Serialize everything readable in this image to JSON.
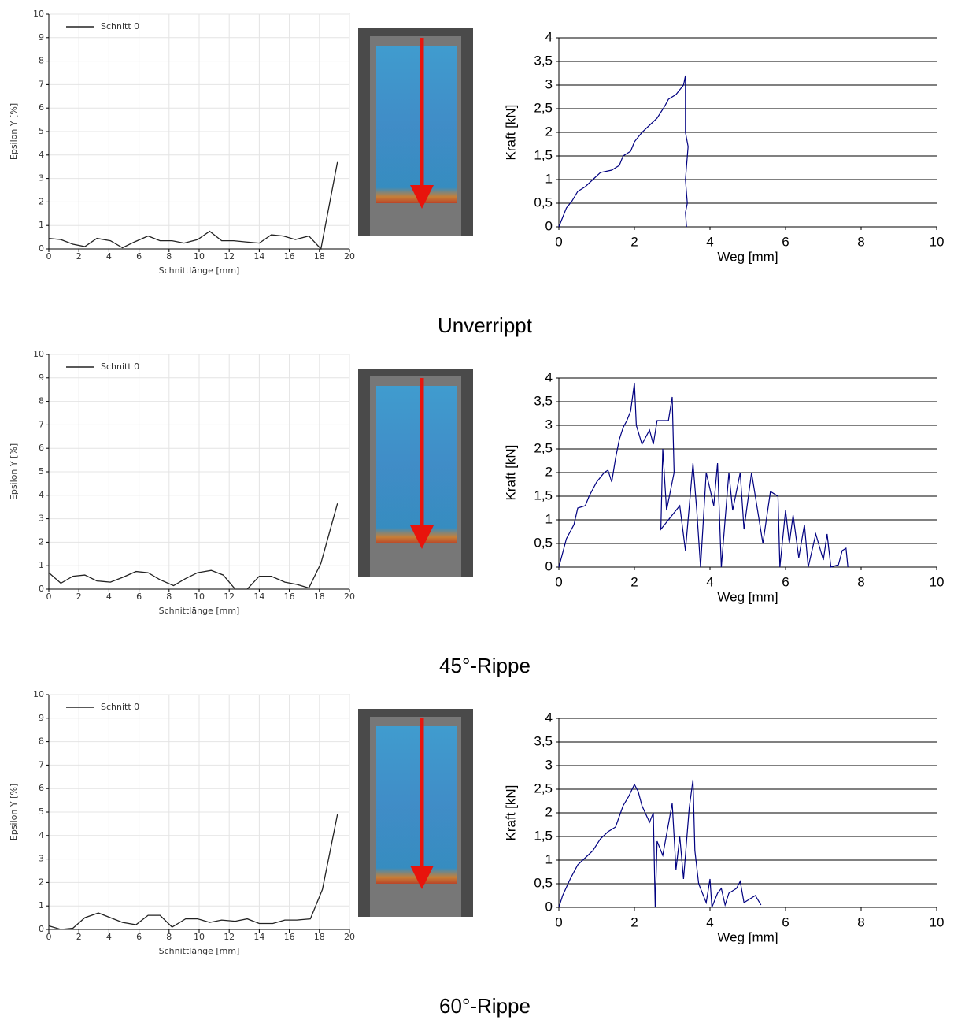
{
  "chart_data": [
    {
      "type": "line",
      "xlabel": "Schnittlänge [mm]",
      "ylabel": "Epsilon Y [%]",
      "grid": "both",
      "legend": "top-left",
      "xlim": [
        0,
        20
      ],
      "xticks": [
        0,
        2,
        4,
        6,
        8,
        10,
        12,
        14,
        16,
        18,
        20
      ],
      "ylim": [
        0,
        10
      ],
      "yticks": [
        0,
        1,
        2,
        3,
        4,
        5,
        6,
        7,
        8,
        9,
        10
      ],
      "x": [
        0,
        0.8,
        1.6,
        2.4,
        3.2,
        4.1,
        4.9,
        5.7,
        6.6,
        7.4,
        8.2,
        9,
        9.9,
        10.7,
        11.5,
        12.3,
        13.1,
        14,
        14.8,
        15.6,
        16.4,
        17.3,
        18.1,
        19.2
      ],
      "series": [
        {
          "name": "Schnitt 0",
          "color": "#222222",
          "values": [
            0.45,
            0.4,
            0.2,
            0.1,
            0.45,
            0.35,
            0.05,
            0.3,
            0.55,
            0.35,
            0.35,
            0.25,
            0.4,
            0.75,
            0.35,
            0.35,
            0.3,
            0.25,
            0.6,
            0.55,
            0.4,
            0.55,
            0.0,
            3.7
          ]
        }
      ]
    },
    {
      "type": "line",
      "xlabel": "Weg [mm]",
      "ylabel": "Kraft [kN]",
      "grid": "y",
      "color": "#000080",
      "xlim": [
        0,
        10
      ],
      "xticks": [
        0,
        2,
        4,
        6,
        8,
        10
      ],
      "ylim": [
        0,
        4
      ],
      "yticks": [
        0,
        {
          "value": 0.5,
          "label": "0,5"
        },
        1,
        {
          "value": 1.5,
          "label": "1,5"
        },
        2,
        {
          "value": 2.5,
          "label": "2,5"
        },
        3,
        {
          "value": 3.5,
          "label": "3,5"
        },
        4
      ],
      "x": [
        0,
        0.1,
        0.2,
        0.35,
        0.5,
        0.7,
        0.9,
        1.1,
        1.4,
        1.6,
        1.7,
        1.9,
        2.0,
        2.2,
        2.4,
        2.6,
        2.8,
        2.9,
        3.1,
        3.3,
        3.35,
        3.35,
        3.42,
        3.35,
        3.4,
        3.35,
        3.38
      ],
      "values": [
        0,
        0.2,
        0.4,
        0.55,
        0.75,
        0.85,
        1.0,
        1.15,
        1.2,
        1.3,
        1.5,
        1.6,
        1.8,
        2.0,
        2.15,
        2.3,
        2.55,
        2.7,
        2.8,
        3.0,
        3.2,
        2.0,
        1.7,
        1.0,
        0.5,
        0.3,
        0
      ]
    },
    {
      "type": "line",
      "xlabel": "Schnittlänge [mm]",
      "ylabel": "Epsilon Y [%]",
      "grid": "both",
      "legend": "top-left",
      "xlim": [
        0,
        20
      ],
      "xticks": [
        0,
        2,
        4,
        6,
        8,
        10,
        12,
        14,
        16,
        18,
        20
      ],
      "ylim": [
        0,
        10
      ],
      "yticks": [
        0,
        1,
        2,
        3,
        4,
        5,
        6,
        7,
        8,
        9,
        10
      ],
      "x": [
        0,
        0.8,
        1.6,
        2.4,
        3.2,
        4.1,
        4.9,
        5.8,
        6.6,
        7.4,
        8.3,
        9.1,
        9.9,
        10.8,
        11.6,
        12.4,
        13.2,
        14,
        14.8,
        15.7,
        16.5,
        17.3,
        18.1,
        19.2
      ],
      "series": [
        {
          "name": "Schnitt 0",
          "color": "#222222",
          "values": [
            0.7,
            0.25,
            0.55,
            0.6,
            0.35,
            0.3,
            0.5,
            0.75,
            0.7,
            0.4,
            0.15,
            0.45,
            0.7,
            0.8,
            0.6,
            0.0,
            0.0,
            0.55,
            0.55,
            0.3,
            0.2,
            0.05,
            1.1,
            3.65
          ]
        }
      ]
    },
    {
      "type": "line",
      "xlabel": "Weg [mm]",
      "ylabel": "Kraft [kN]",
      "grid": "y",
      "color": "#000080",
      "xlim": [
        0,
        10
      ],
      "xticks": [
        0,
        2,
        4,
        6,
        8,
        10
      ],
      "ylim": [
        0,
        4
      ],
      "yticks": [
        0,
        {
          "value": 0.5,
          "label": "0,5"
        },
        1,
        {
          "value": 1.5,
          "label": "1,5"
        },
        2,
        {
          "value": 2.5,
          "label": "2,5"
        },
        3,
        {
          "value": 3.5,
          "label": "3,5"
        },
        4
      ],
      "x": [
        0,
        0.1,
        0.2,
        0.4,
        0.5,
        0.7,
        0.8,
        1.0,
        1.2,
        1.3,
        1.4,
        1.5,
        1.6,
        1.7,
        1.8,
        1.9,
        2.0,
        2.05,
        2.2,
        2.4,
        2.5,
        2.6,
        2.9,
        3.0,
        3.05,
        2.85,
        2.75,
        2.7,
        3.2,
        3.35,
        3.55,
        3.65,
        3.75,
        3.9,
        4.1,
        4.2,
        4.3,
        4.5,
        4.6,
        4.8,
        4.9,
        5.1,
        5.3,
        5.4,
        5.6,
        5.8,
        5.85,
        6.0,
        6.1,
        6.2,
        6.35,
        6.5,
        6.6,
        6.8,
        7.0,
        7.1,
        7.2,
        7.4,
        7.5,
        7.6,
        7.65
      ],
      "values": [
        0,
        0.3,
        0.6,
        0.9,
        1.25,
        1.3,
        1.5,
        1.8,
        2.0,
        2.05,
        1.8,
        2.3,
        2.7,
        2.95,
        3.1,
        3.3,
        3.9,
        3.0,
        2.6,
        2.9,
        2.6,
        3.1,
        3.1,
        3.6,
        2.0,
        1.2,
        2.5,
        0.8,
        1.3,
        0.35,
        2.2,
        1.2,
        0,
        2.0,
        1.3,
        2.2,
        0,
        2.0,
        1.2,
        2.0,
        0.8,
        2.0,
        1.0,
        0.5,
        1.6,
        1.5,
        0,
        1.2,
        0.5,
        1.1,
        0.2,
        0.9,
        0,
        0.7,
        0.15,
        0.7,
        0,
        0.05,
        0.35,
        0.4,
        0
      ]
    },
    {
      "type": "line",
      "xlabel": "Schnittlänge [mm]",
      "ylabel": "Epsilon Y [%]",
      "grid": "both",
      "legend": "top-left",
      "xlim": [
        0,
        20
      ],
      "xticks": [
        0,
        2,
        4,
        6,
        8,
        10,
        12,
        14,
        16,
        18,
        20
      ],
      "ylim": [
        0,
        10
      ],
      "yticks": [
        0,
        1,
        2,
        3,
        4,
        5,
        6,
        7,
        8,
        9,
        10
      ],
      "x": [
        0,
        0.8,
        1.6,
        2.4,
        3.3,
        4.1,
        4.9,
        5.8,
        6.6,
        7.4,
        8.2,
        9.1,
        9.9,
        10.7,
        11.5,
        12.4,
        13.2,
        14,
        14.9,
        15.7,
        16.5,
        17.4,
        18.2,
        19.2
      ],
      "series": [
        {
          "name": "Schnitt 0",
          "color": "#222222",
          "values": [
            0.15,
            0.0,
            0.05,
            0.5,
            0.7,
            0.5,
            0.3,
            0.2,
            0.6,
            0.6,
            0.1,
            0.45,
            0.45,
            0.3,
            0.4,
            0.35,
            0.45,
            0.25,
            0.25,
            0.4,
            0.4,
            0.45,
            1.7,
            4.9
          ]
        }
      ]
    },
    {
      "type": "line",
      "xlabel": "Weg [mm]",
      "ylabel": "Kraft [kN]",
      "grid": "y",
      "color": "#000080",
      "xlim": [
        0,
        10
      ],
      "xticks": [
        0,
        2,
        4,
        6,
        8,
        10
      ],
      "ylim": [
        0,
        4
      ],
      "yticks": [
        0,
        {
          "value": 0.5,
          "label": "0,5"
        },
        1,
        {
          "value": 1.5,
          "label": "1,5"
        },
        2,
        {
          "value": 2.5,
          "label": "2,5"
        },
        3,
        {
          "value": 3.5,
          "label": "3,5"
        },
        4
      ],
      "x": [
        0,
        0.1,
        0.3,
        0.5,
        0.7,
        0.9,
        1.1,
        1.3,
        1.5,
        1.7,
        1.85,
        2.0,
        2.1,
        2.2,
        2.4,
        2.5,
        2.55,
        2.6,
        2.75,
        3.0,
        3.1,
        3.2,
        3.3,
        3.45,
        3.55,
        3.6,
        3.7,
        3.9,
        4.0,
        4.05,
        4.2,
        4.3,
        4.4,
        4.5,
        4.7,
        4.8,
        4.9,
        5.0,
        5.2,
        5.35
      ],
      "values": [
        0,
        0.25,
        0.6,
        0.9,
        1.05,
        1.2,
        1.45,
        1.6,
        1.7,
        2.15,
        2.35,
        2.6,
        2.45,
        2.15,
        1.8,
        2.0,
        0,
        1.4,
        1.1,
        2.2,
        0.8,
        1.5,
        0.6,
        2.1,
        2.7,
        1.2,
        0.5,
        0.1,
        0.6,
        0,
        0.3,
        0.4,
        0.05,
        0.3,
        0.4,
        0.55,
        0.1,
        0.15,
        0.25,
        0.05
      ]
    }
  ],
  "captions": [
    "Unverrippt",
    "45°-Rippe",
    "60°-Rippe"
  ]
}
